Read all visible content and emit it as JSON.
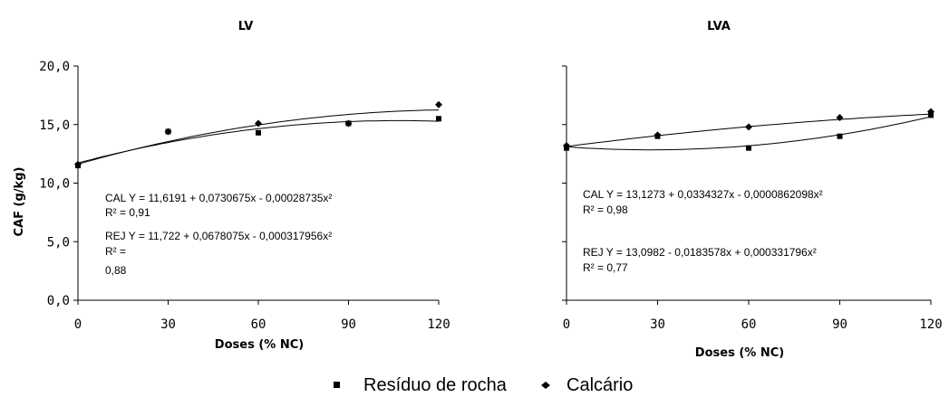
{
  "chart_data": [
    {
      "type": "scatter",
      "title": "LV",
      "xlabel": "Doses (% NC)",
      "ylabel": "CAF (g/kg)",
      "xlim": [
        0,
        120
      ],
      "ylim": [
        0,
        20
      ],
      "x_ticks": [
        "0",
        "30",
        "60",
        "90",
        "120"
      ],
      "y_ticks": [
        "0,0",
        "5,0",
        "10,0",
        "15,0",
        "20,0"
      ],
      "x_tick_values": [
        0,
        30,
        60,
        90,
        120
      ],
      "y_tick_values": [
        0,
        5,
        10,
        15,
        20
      ],
      "series": [
        {
          "key": "residuo",
          "x": [
            0,
            30,
            60,
            90,
            120
          ],
          "y": [
            11.5,
            14.4,
            14.3,
            15.1,
            15.5
          ]
        },
        {
          "key": "calcario",
          "x": [
            0,
            30,
            60,
            90,
            120
          ],
          "y": [
            11.6,
            14.4,
            15.1,
            15.1,
            16.7
          ]
        }
      ],
      "fits": [
        {
          "key": "cal",
          "coef": [
            11.6191,
            0.0730675,
            -0.00028735
          ]
        },
        {
          "key": "rej",
          "coef": [
            11.722,
            0.0678075,
            -0.000317956
          ]
        }
      ],
      "annotations": [
        "CAL  Y = 11,6191 + 0,0730675x - 0,00028735x²",
        "R² = 0,91",
        "REJ  Y = 11,722 + 0,0678075x - 0,000317956x²",
        "R² =",
        "0,88"
      ]
    },
    {
      "type": "scatter",
      "title": "LVA",
      "xlabel": "Doses (% NC)",
      "ylabel": "",
      "xlim": [
        0,
        120
      ],
      "ylim": [
        0,
        20
      ],
      "x_ticks": [
        "0",
        "30",
        "60",
        "90",
        "120"
      ],
      "y_ticks": [],
      "x_tick_values": [
        0,
        30,
        60,
        90,
        120
      ],
      "y_tick_values": [
        0,
        5,
        10,
        15,
        20
      ],
      "series": [
        {
          "key": "residuo",
          "x": [
            0,
            30,
            60,
            90,
            120
          ],
          "y": [
            13.0,
            14.0,
            13.0,
            14.0,
            15.8
          ]
        },
        {
          "key": "calcario",
          "x": [
            0,
            30,
            60,
            90,
            120
          ],
          "y": [
            13.2,
            14.1,
            14.8,
            15.6,
            16.1
          ]
        }
      ],
      "fits": [
        {
          "key": "cal",
          "coef": [
            13.1273,
            0.0334327,
            -8.62098e-05
          ]
        },
        {
          "key": "rej",
          "coef": [
            13.0982,
            -0.0183578,
            0.000331796
          ]
        }
      ],
      "annotations": [
        "CAL  Y = 13,1273 + 0,0334327x - 0,0000862098x²",
        "R² = 0,98",
        "REJ  Y = 13,0982 - 0,0183578x + 0,000331796x²",
        "R² = 0,77"
      ]
    }
  ],
  "legend": {
    "residuo": "Resíduo de rocha",
    "calcario": "Calcário"
  },
  "colors": {
    "ink": "#000000",
    "background": "#ffffff"
  }
}
